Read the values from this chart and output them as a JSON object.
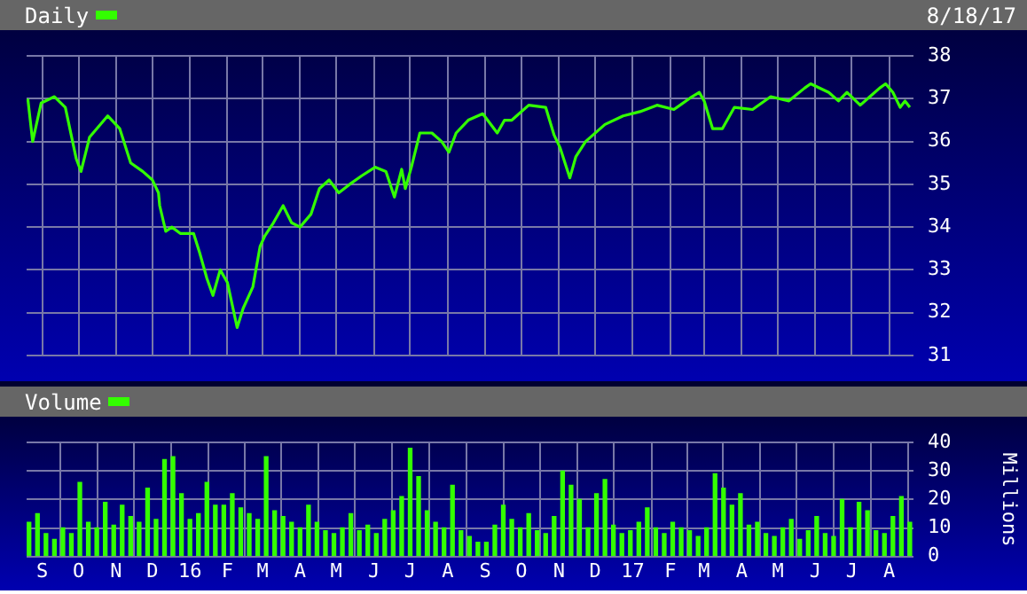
{
  "chart_data": [
    {
      "type": "line",
      "annotations": [
        "8/18/17"
      ],
      "series": [
        {
          "name": "Daily",
          "color": "#33ff00",
          "x": [
            "2015-08-20",
            "2015-08-24",
            "2015-08-31",
            "2015-09-11",
            "2015-09-20",
            "2015-09-29",
            "2015-10-03",
            "2015-10-10",
            "2015-10-25",
            "2015-11-04",
            "2015-11-13",
            "2015-11-23",
            "2015-12-01",
            "2015-12-06",
            "2015-12-07",
            "2015-12-12",
            "2015-12-17",
            "2015-12-24",
            "2016-01-04",
            "2016-01-09",
            "2016-01-15",
            "2016-01-20",
            "2016-01-26",
            "2016-02-01",
            "2016-02-09",
            "2016-02-14",
            "2016-02-22",
            "2016-02-28",
            "2016-03-03",
            "2016-03-10",
            "2016-03-18",
            "2016-03-25",
            "2016-04-01",
            "2016-04-10",
            "2016-04-17",
            "2016-04-25",
            "2016-05-03",
            "2016-05-12",
            "2016-05-22",
            "2016-06-02",
            "2016-06-11",
            "2016-06-18",
            "2016-06-24",
            "2016-06-27",
            "2016-07-02",
            "2016-07-09",
            "2016-07-19",
            "2016-07-27",
            "2016-08-02",
            "2016-08-08",
            "2016-08-18",
            "2016-08-30",
            "2016-09-11",
            "2016-09-17",
            "2016-09-23",
            "2016-10-07",
            "2016-10-21",
            "2016-10-28",
            "2016-11-02",
            "2016-11-10",
            "2016-11-15",
            "2016-11-23",
            "2016-12-09",
            "2016-12-24",
            "2017-01-07",
            "2017-01-21",
            "2017-02-04",
            "2017-02-19",
            "2017-02-25",
            "2017-03-01",
            "2017-03-08",
            "2017-03-16",
            "2017-03-26",
            "2017-04-10",
            "2017-04-25",
            "2017-05-10",
            "2017-05-23",
            "2017-05-28",
            "2017-06-12",
            "2017-06-20",
            "2017-06-27",
            "2017-07-08",
            "2017-07-16",
            "2017-07-24",
            "2017-07-29",
            "2017-08-04",
            "2017-08-10",
            "2017-08-14",
            "2017-08-18"
          ],
          "values": [
            37.0,
            36.0,
            36.9,
            37.05,
            36.8,
            35.6,
            35.3,
            36.1,
            36.6,
            36.3,
            35.5,
            35.3,
            35.1,
            34.8,
            34.5,
            33.9,
            34.0,
            33.85,
            33.85,
            33.4,
            32.8,
            32.4,
            33.0,
            32.7,
            31.65,
            32.1,
            32.6,
            33.55,
            33.8,
            34.1,
            34.5,
            34.1,
            34.0,
            34.3,
            34.9,
            35.1,
            34.8,
            35.0,
            35.2,
            35.4,
            35.3,
            34.7,
            35.35,
            34.9,
            35.4,
            36.2,
            36.2,
            36.0,
            35.75,
            36.2,
            36.5,
            36.65,
            36.2,
            36.5,
            36.5,
            36.85,
            36.8,
            36.15,
            35.85,
            35.15,
            35.65,
            36.0,
            36.4,
            36.6,
            36.7,
            36.85,
            36.75,
            37.05,
            37.15,
            36.95,
            36.3,
            36.3,
            36.8,
            36.75,
            37.05,
            36.95,
            37.25,
            37.35,
            37.15,
            36.95,
            37.15,
            36.85,
            37.05,
            37.25,
            37.35,
            37.15,
            36.8,
            36.95,
            36.8
          ]
        }
      ],
      "xlim": [
        "2015-08-19",
        "2017-08-21"
      ],
      "xticks": [
        {
          "value": "2015-09-01",
          "label": null
        },
        {
          "value": "2015-10-01",
          "label": null
        },
        {
          "value": "2015-11-01",
          "label": null
        },
        {
          "value": "2015-12-01",
          "label": null
        },
        {
          "value": "2016-01-01",
          "label": null
        },
        {
          "value": "2016-02-01",
          "label": null
        },
        {
          "value": "2016-03-01",
          "label": null
        },
        {
          "value": "2016-04-01",
          "label": null
        },
        {
          "value": "2016-05-01",
          "label": null
        },
        {
          "value": "2016-06-01",
          "label": null
        },
        {
          "value": "2016-07-01",
          "label": null
        },
        {
          "value": "2016-08-01",
          "label": null
        },
        {
          "value": "2016-09-01",
          "label": null
        },
        {
          "value": "2016-10-01",
          "label": null
        },
        {
          "value": "2016-11-01",
          "label": null
        },
        {
          "value": "2016-12-01",
          "label": null
        },
        {
          "value": "2017-01-01",
          "label": null
        },
        {
          "value": "2017-02-01",
          "label": null
        },
        {
          "value": "2017-03-01",
          "label": null
        },
        {
          "value": "2017-04-01",
          "label": null
        },
        {
          "value": "2017-05-01",
          "label": null
        },
        {
          "value": "2017-06-01",
          "label": null
        },
        {
          "value": "2017-07-01",
          "label": null
        },
        {
          "value": "2017-08-01",
          "label": null
        }
      ],
      "ylim": [
        31,
        38
      ],
      "yticks": [
        31,
        32,
        33,
        34,
        35,
        36,
        37,
        38
      ],
      "grid": true,
      "legend": "top left",
      "tick_labels": "y"
    },
    {
      "type": "bar",
      "ylabel": "Millions",
      "series": [
        {
          "name": "Volume",
          "color": "#33ff00",
          "x": [
            "2015-08-21",
            "2015-08-28",
            "2015-09-04",
            "2015-09-11",
            "2015-09-18",
            "2015-09-25",
            "2015-10-02",
            "2015-10-09",
            "2015-10-16",
            "2015-10-23",
            "2015-10-30",
            "2015-11-06",
            "2015-11-13",
            "2015-11-20",
            "2015-11-27",
            "2015-12-04",
            "2015-12-11",
            "2015-12-18",
            "2015-12-25",
            "2016-01-01",
            "2016-01-08",
            "2016-01-15",
            "2016-01-22",
            "2016-01-29",
            "2016-02-05",
            "2016-02-12",
            "2016-02-19",
            "2016-02-26",
            "2016-03-04",
            "2016-03-11",
            "2016-03-18",
            "2016-03-25",
            "2016-04-01",
            "2016-04-08",
            "2016-04-15",
            "2016-04-22",
            "2016-04-29",
            "2016-05-06",
            "2016-05-13",
            "2016-05-20",
            "2016-05-27",
            "2016-06-03",
            "2016-06-10",
            "2016-06-17",
            "2016-06-24",
            "2016-07-01",
            "2016-07-08",
            "2016-07-15",
            "2016-07-22",
            "2016-07-29",
            "2016-08-05",
            "2016-08-12",
            "2016-08-19",
            "2016-08-26",
            "2016-09-02",
            "2016-09-09",
            "2016-09-16",
            "2016-09-23",
            "2016-09-30",
            "2016-10-07",
            "2016-10-14",
            "2016-10-21",
            "2016-10-28",
            "2016-11-04",
            "2016-11-11",
            "2016-11-18",
            "2016-11-25",
            "2016-12-02",
            "2016-12-09",
            "2016-12-16",
            "2016-12-23",
            "2016-12-30",
            "2017-01-06",
            "2017-01-13",
            "2017-01-20",
            "2017-01-27",
            "2017-02-03",
            "2017-02-10",
            "2017-02-17",
            "2017-02-24",
            "2017-03-03",
            "2017-03-10",
            "2017-03-17",
            "2017-03-24",
            "2017-03-31",
            "2017-04-07",
            "2017-04-14",
            "2017-04-21",
            "2017-04-28",
            "2017-05-05",
            "2017-05-12",
            "2017-05-19",
            "2017-05-26",
            "2017-06-02",
            "2017-06-09",
            "2017-06-16",
            "2017-06-23",
            "2017-06-30",
            "2017-07-07",
            "2017-07-14",
            "2017-07-21",
            "2017-07-28",
            "2017-08-04",
            "2017-08-11",
            "2017-08-18"
          ],
          "values": [
            12,
            15,
            8,
            6,
            10,
            8,
            26,
            12,
            10,
            19,
            11,
            18,
            14,
            12,
            24,
            13,
            34,
            35,
            22,
            13,
            15,
            26,
            18,
            18,
            22,
            17,
            15,
            13,
            35,
            16,
            14,
            12,
            10,
            18,
            12,
            9,
            8,
            10,
            15,
            9,
            11,
            8,
            13,
            16,
            21,
            38,
            28,
            16,
            12,
            10,
            25,
            9,
            7,
            5,
            5,
            11,
            18,
            13,
            10,
            15,
            9,
            8,
            14,
            30,
            25,
            20,
            10,
            22,
            27,
            11,
            8,
            9,
            12,
            17,
            10,
            8,
            12,
            10,
            9,
            7,
            10,
            29,
            24,
            18,
            22,
            11,
            12,
            8,
            7,
            10,
            13,
            6,
            9,
            14,
            8,
            7,
            20,
            10,
            19,
            16,
            9,
            8,
            14,
            21,
            12
          ]
        }
      ],
      "xlim": [
        "2015-08-19",
        "2017-08-21"
      ],
      "xticks": [
        {
          "value": "2015-09-01",
          "label": "S"
        },
        {
          "value": "2015-10-01",
          "label": "O"
        },
        {
          "value": "2015-11-01",
          "label": "N"
        },
        {
          "value": "2015-12-01",
          "label": "D"
        },
        {
          "value": "2016-01-01",
          "label": "16"
        },
        {
          "value": "2016-02-01",
          "label": "F"
        },
        {
          "value": "2016-03-01",
          "label": "M"
        },
        {
          "value": "2016-04-01",
          "label": "A"
        },
        {
          "value": "2016-05-01",
          "label": "M"
        },
        {
          "value": "2016-06-01",
          "label": "J"
        },
        {
          "value": "2016-07-01",
          "label": "J"
        },
        {
          "value": "2016-08-01",
          "label": "A"
        },
        {
          "value": "2016-09-01",
          "label": "S"
        },
        {
          "value": "2016-10-01",
          "label": "O"
        },
        {
          "value": "2016-11-01",
          "label": "N"
        },
        {
          "value": "2016-12-01",
          "label": "D"
        },
        {
          "value": "2017-01-01",
          "label": "17"
        },
        {
          "value": "2017-02-01",
          "label": "F"
        },
        {
          "value": "2017-03-01",
          "label": "M"
        },
        {
          "value": "2017-04-01",
          "label": "A"
        },
        {
          "value": "2017-05-01",
          "label": "M"
        },
        {
          "value": "2017-06-01",
          "label": "J"
        },
        {
          "value": "2017-07-01",
          "label": "J"
        },
        {
          "value": "2017-08-01",
          "label": "A"
        }
      ],
      "ylim": [
        0,
        40
      ],
      "yticks": [
        0,
        10,
        20,
        30,
        40
      ],
      "grid": true,
      "legend": "top left"
    }
  ]
}
